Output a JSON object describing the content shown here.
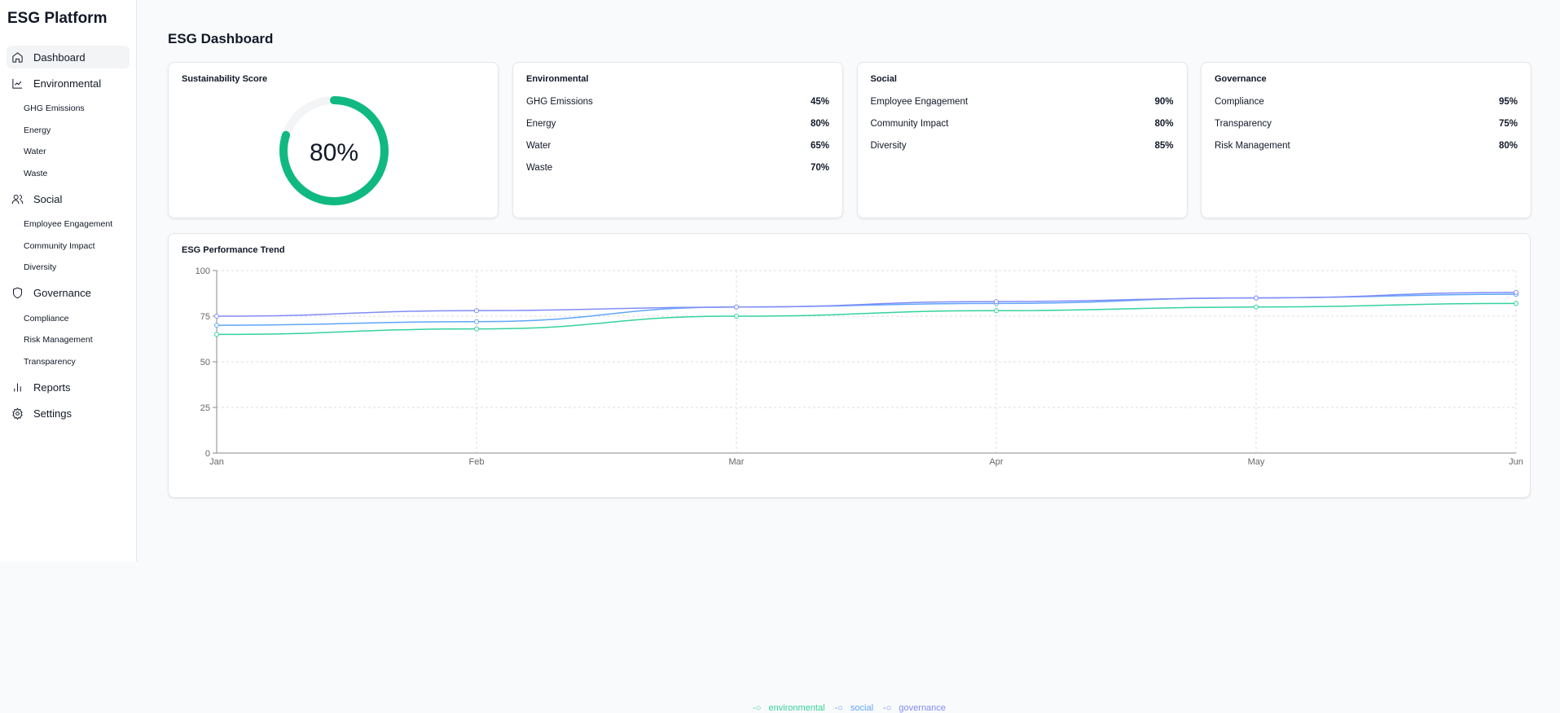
{
  "sidebar": {
    "brand": "ESG Platform",
    "items": [
      {
        "label": "Dashboard",
        "icon": "home-icon",
        "active": true
      },
      {
        "label": "Environmental",
        "icon": "line-chart-icon",
        "children": [
          "GHG Emissions",
          "Energy",
          "Water",
          "Waste"
        ]
      },
      {
        "label": "Social",
        "icon": "users-icon",
        "children": [
          "Employee Engagement",
          "Community Impact",
          "Diversity"
        ]
      },
      {
        "label": "Governance",
        "icon": "shield-icon",
        "children": [
          "Compliance",
          "Risk Management",
          "Transparency"
        ]
      },
      {
        "label": "Reports",
        "icon": "bar-chart-icon"
      },
      {
        "label": "Settings",
        "icon": "gear-icon"
      }
    ]
  },
  "page_title": "ESG Dashboard",
  "score": {
    "title": "Sustainability Score",
    "value": 80,
    "label": "80%",
    "color": "#10b981",
    "track": "#f3f4f6"
  },
  "cards": [
    {
      "title": "Environmental",
      "rows": [
        {
          "label": "GHG Emissions",
          "value": "45%"
        },
        {
          "label": "Energy",
          "value": "80%"
        },
        {
          "label": "Water",
          "value": "65%"
        },
        {
          "label": "Waste",
          "value": "70%"
        }
      ]
    },
    {
      "title": "Social",
      "rows": [
        {
          "label": "Employee Engagement",
          "value": "90%"
        },
        {
          "label": "Community Impact",
          "value": "80%"
        },
        {
          "label": "Diversity",
          "value": "85%"
        }
      ]
    },
    {
      "title": "Governance",
      "rows": [
        {
          "label": "Compliance",
          "value": "95%"
        },
        {
          "label": "Transparency",
          "value": "75%"
        },
        {
          "label": "Risk Management",
          "value": "80%"
        }
      ]
    }
  ],
  "chart_data": {
    "type": "line",
    "title": "ESG Performance Trend",
    "categories": [
      "Jan",
      "Feb",
      "Mar",
      "Apr",
      "May",
      "Jun"
    ],
    "ylim": [
      0,
      100
    ],
    "yticks": [
      "0",
      "25",
      "50",
      "75",
      "100"
    ],
    "grid": true,
    "legend": "bottom",
    "series": [
      {
        "name": "environmental",
        "color": "#34d399",
        "values": [
          65,
          68,
          75,
          78,
          80,
          82
        ]
      },
      {
        "name": "social",
        "color": "#60a5fa",
        "values": [
          70,
          72,
          80,
          82,
          85,
          87
        ]
      },
      {
        "name": "governance",
        "color": "#818cf8",
        "values": [
          75,
          78,
          80,
          83,
          85,
          88
        ]
      }
    ]
  }
}
